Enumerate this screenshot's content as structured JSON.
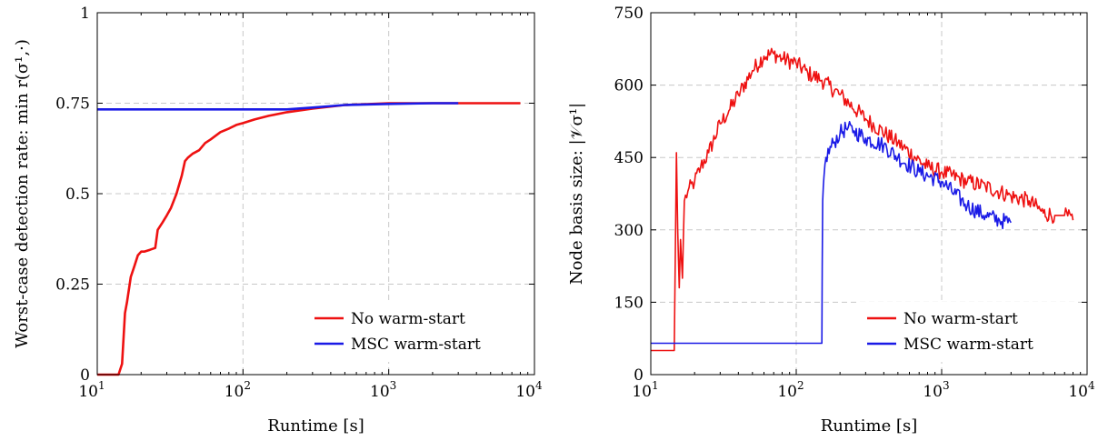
{
  "chart_data": [
    {
      "type": "line",
      "xlabel": "Runtime [s]",
      "ylabel": "Worst-case detection rate:  min r(σ¹,·)",
      "xscale": "log",
      "xlim": [
        10,
        10000
      ],
      "ylim": [
        0,
        1
      ],
      "x_ticks": [
        10,
        100,
        1000,
        10000
      ],
      "x_tick_labels": [
        {
          "base": "10",
          "exp": "1"
        },
        {
          "base": "10",
          "exp": "2"
        },
        {
          "base": "10",
          "exp": "3"
        },
        {
          "base": "10",
          "exp": "4"
        }
      ],
      "y_ticks": [
        0,
        0.25,
        0.5,
        0.75,
        1
      ],
      "y_tick_labels": [
        "0",
        "0.25",
        "0.5",
        "0.75",
        "1"
      ],
      "grid": true,
      "legend": "bottom-right",
      "series": [
        {
          "name": "No warm-start",
          "color": "#ee1111",
          "x": [
            10,
            14,
            14.8,
            15.5,
            16,
            17,
            18,
            19,
            20,
            21,
            23,
            25,
            26,
            28,
            30,
            32,
            35,
            38,
            40,
            42,
            45,
            50,
            55,
            60,
            70,
            80,
            90,
            100,
            120,
            150,
            200,
            300,
            500,
            1000,
            3000,
            8000
          ],
          "y": [
            0,
            0,
            0.03,
            0.17,
            0.2,
            0.27,
            0.3,
            0.33,
            0.34,
            0.34,
            0.345,
            0.35,
            0.4,
            0.42,
            0.44,
            0.46,
            0.5,
            0.55,
            0.59,
            0.6,
            0.61,
            0.62,
            0.64,
            0.65,
            0.67,
            0.68,
            0.69,
            0.695,
            0.705,
            0.715,
            0.725,
            0.735,
            0.745,
            0.75,
            0.75,
            0.75
          ]
        },
        {
          "name": "MSC warm-start",
          "color": "#1a1ae6",
          "x": [
            10,
            200,
            300,
            500,
            1000,
            2000,
            3000
          ],
          "y": [
            0.733,
            0.733,
            0.738,
            0.745,
            0.748,
            0.75,
            0.75
          ]
        }
      ]
    },
    {
      "type": "line",
      "xlabel": "Runtime [s]",
      "ylabel": "Node basis size:  |𝒱σ¹|",
      "xscale": "log",
      "xlim": [
        10,
        10000
      ],
      "ylim": [
        0,
        750
      ],
      "x_ticks": [
        10,
        100,
        1000,
        10000
      ],
      "x_tick_labels": [
        {
          "base": "10",
          "exp": "1"
        },
        {
          "base": "10",
          "exp": "2"
        },
        {
          "base": "10",
          "exp": "3"
        },
        {
          "base": "10",
          "exp": "4"
        }
      ],
      "y_ticks": [
        0,
        150,
        300,
        450,
        600,
        750
      ],
      "y_tick_labels": [
        "0",
        "150",
        "300",
        "450",
        "600",
        "750"
      ],
      "grid": true,
      "legend": "bottom-right",
      "series": [
        {
          "name": "No warm-start",
          "color": "#ee1111",
          "x": [
            10,
            14.5,
            15,
            15.3,
            15.7,
            16,
            16.5,
            17,
            18,
            20,
            22,
            25,
            30,
            35,
            40,
            50,
            60,
            70,
            80,
            100,
            120,
            150,
            200,
            300,
            500,
            800,
            1000,
            1500,
            2000,
            3000,
            4000,
            5000,
            6000,
            7000,
            8000
          ],
          "y": [
            50,
            50,
            460,
            300,
            180,
            280,
            200,
            360,
            380,
            400,
            430,
            460,
            520,
            550,
            580,
            630,
            660,
            665,
            655,
            645,
            625,
            610,
            580,
            530,
            480,
            430,
            420,
            400,
            390,
            370,
            360,
            335,
            330,
            330,
            320
          ]
        },
        {
          "name": "MSC warm-start",
          "color": "#1a1ae6",
          "x": [
            10,
            150,
            152,
            155,
            160,
            180,
            200,
            220,
            250,
            300,
            400,
            500,
            700,
            1000,
            1500,
            2000,
            2500,
            3000
          ],
          "y": [
            65,
            65,
            360,
            410,
            450,
            480,
            500,
            510,
            505,
            490,
            475,
            450,
            420,
            400,
            350,
            330,
            320,
            315
          ]
        }
      ]
    }
  ]
}
